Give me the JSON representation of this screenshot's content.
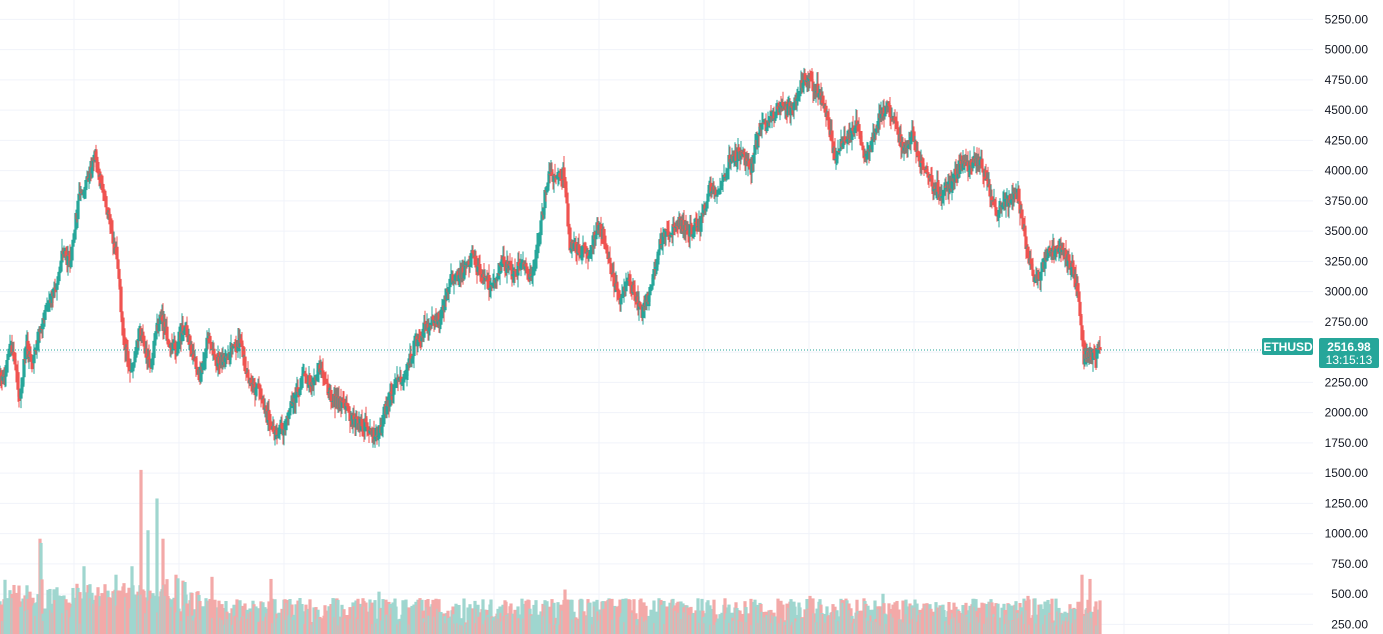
{
  "symbol": "ETHUSD",
  "last_price": "2516.98",
  "countdown": "13:15:13",
  "colors": {
    "up": "#26a69a",
    "down": "#ef5350",
    "up_volume": "#9fd6cf",
    "down_volume": "#f3a9a8",
    "grid": "#f0f3fa",
    "price_line": "#26a69a"
  },
  "chart_data": {
    "type": "candlestick",
    "y_axis": {
      "ticks": [
        "5250.00",
        "5000.00",
        "4750.00",
        "4500.00",
        "4250.00",
        "4000.00",
        "3750.00",
        "3500.00",
        "3250.00",
        "3000.00",
        "2750.00",
        "2500.00",
        "2250.00",
        "2000.00",
        "1750.00",
        "1500.00",
        "1250.00",
        "1000.00",
        "750.00",
        "500.00",
        "250.00"
      ],
      "range": [
        170,
        5410
      ]
    },
    "anchors": [
      [
        0,
        2280
      ],
      [
        5,
        2300
      ],
      [
        10,
        2560
      ],
      [
        15,
        2400
      ],
      [
        20,
        2100
      ],
      [
        26,
        2560
      ],
      [
        33,
        2380
      ],
      [
        40,
        2700
      ],
      [
        47,
        2860
      ],
      [
        55,
        3000
      ],
      [
        62,
        3300
      ],
      [
        70,
        3250
      ],
      [
        80,
        3820
      ],
      [
        88,
        3950
      ],
      [
        95,
        4150
      ],
      [
        100,
        3920
      ],
      [
        110,
        3550
      ],
      [
        118,
        3240
      ],
      [
        123,
        2600
      ],
      [
        131,
        2300
      ],
      [
        140,
        2680
      ],
      [
        150,
        2380
      ],
      [
        160,
        2800
      ],
      [
        168,
        2600
      ],
      [
        176,
        2520
      ],
      [
        184,
        2720
      ],
      [
        192,
        2500
      ],
      [
        200,
        2300
      ],
      [
        208,
        2600
      ],
      [
        216,
        2420
      ],
      [
        222,
        2450
      ],
      [
        230,
        2500
      ],
      [
        240,
        2560
      ],
      [
        250,
        2220
      ],
      [
        258,
        2190
      ],
      [
        266,
        1990
      ],
      [
        276,
        1830
      ],
      [
        285,
        1880
      ],
      [
        295,
        2130
      ],
      [
        305,
        2300
      ],
      [
        312,
        2220
      ],
      [
        320,
        2380
      ],
      [
        328,
        2160
      ],
      [
        335,
        2100
      ],
      [
        345,
        2050
      ],
      [
        355,
        1920
      ],
      [
        365,
        1900
      ],
      [
        378,
        1780
      ],
      [
        385,
        2020
      ],
      [
        395,
        2220
      ],
      [
        405,
        2320
      ],
      [
        415,
        2560
      ],
      [
        425,
        2700
      ],
      [
        440,
        2800
      ],
      [
        452,
        3100
      ],
      [
        462,
        3150
      ],
      [
        472,
        3300
      ],
      [
        482,
        3120
      ],
      [
        492,
        3050
      ],
      [
        502,
        3250
      ],
      [
        512,
        3140
      ],
      [
        522,
        3220
      ],
      [
        532,
        3100
      ],
      [
        540,
        3500
      ],
      [
        548,
        3950
      ],
      [
        556,
        3960
      ],
      [
        564,
        3980
      ],
      [
        570,
        3400
      ],
      [
        578,
        3350
      ],
      [
        590,
        3300
      ],
      [
        597,
        3550
      ],
      [
        604,
        3450
      ],
      [
        612,
        3150
      ],
      [
        620,
        2900
      ],
      [
        628,
        3100
      ],
      [
        636,
        2950
      ],
      [
        642,
        2830
      ],
      [
        650,
        3000
      ],
      [
        660,
        3400
      ],
      [
        670,
        3500
      ],
      [
        680,
        3580
      ],
      [
        690,
        3500
      ],
      [
        700,
        3550
      ],
      [
        710,
        3850
      ],
      [
        720,
        3850
      ],
      [
        730,
        4100
      ],
      [
        740,
        4150
      ],
      [
        750,
        4000
      ],
      [
        760,
        4350
      ],
      [
        770,
        4400
      ],
      [
        780,
        4550
      ],
      [
        790,
        4500
      ],
      [
        796,
        4600
      ],
      [
        804,
        4780
      ],
      [
        812,
        4720
      ],
      [
        820,
        4640
      ],
      [
        828,
        4450
      ],
      [
        835,
        4100
      ],
      [
        842,
        4200
      ],
      [
        850,
        4300
      ],
      [
        858,
        4380
      ],
      [
        866,
        4100
      ],
      [
        872,
        4250
      ],
      [
        880,
        4450
      ],
      [
        888,
        4520
      ],
      [
        896,
        4350
      ],
      [
        904,
        4150
      ],
      [
        912,
        4300
      ],
      [
        920,
        4080
      ],
      [
        928,
        3950
      ],
      [
        936,
        3850
      ],
      [
        944,
        3800
      ],
      [
        952,
        3920
      ],
      [
        960,
        4030
      ],
      [
        970,
        4050
      ],
      [
        980,
        4080
      ],
      [
        988,
        3900
      ],
      [
        996,
        3650
      ],
      [
        1004,
        3700
      ],
      [
        1012,
        3760
      ],
      [
        1018,
        3800
      ],
      [
        1026,
        3380
      ],
      [
        1034,
        3100
      ],
      [
        1040,
        3150
      ],
      [
        1048,
        3300
      ],
      [
        1056,
        3350
      ],
      [
        1064,
        3300
      ],
      [
        1072,
        3200
      ],
      [
        1078,
        2980
      ],
      [
        1084,
        2450
      ],
      [
        1092,
        2450
      ],
      [
        1100,
        2517
      ]
    ],
    "volume_axis": {
      "range": [
        0,
        1700
      ]
    },
    "volume_spikes": [
      [
        40,
        900
      ],
      [
        41,
        860
      ],
      [
        84,
        640
      ],
      [
        116,
        560
      ],
      [
        132,
        640
      ],
      [
        141,
        1550
      ],
      [
        148,
        980
      ],
      [
        157,
        1280
      ],
      [
        163,
        900
      ],
      [
        176,
        560
      ],
      [
        212,
        540
      ],
      [
        271,
        520
      ],
      [
        379,
        400
      ],
      [
        565,
        420
      ],
      [
        810,
        360
      ],
      [
        883,
        380
      ],
      [
        1028,
        360
      ],
      [
        1082,
        560
      ],
      [
        1090,
        520
      ]
    ]
  }
}
